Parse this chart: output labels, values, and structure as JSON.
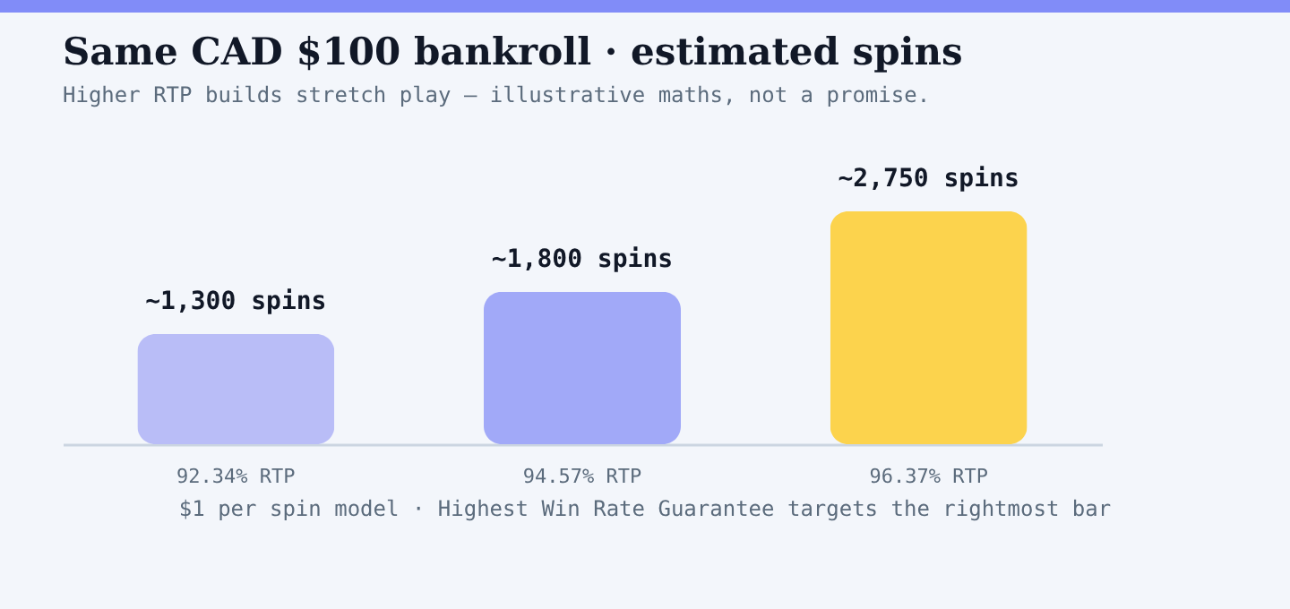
{
  "chart_data": {
    "type": "bar",
    "title": "Same CAD $100 bankroll · estimated spins",
    "subtitle": "Higher RTP builds stretch play — illustrative maths, not a promise.",
    "categories": [
      "92.34% RTP",
      "94.57% RTP",
      "96.37% RTP"
    ],
    "values": [
      1300,
      1800,
      2750
    ],
    "colors": [
      "#b9bdf7",
      "#a1a9f8",
      "#fcd34d"
    ],
    "value_labels": [
      "~1,300 spins",
      "~1,800 spins",
      "~2,750 spins"
    ],
    "annotations": [
      "$1 per spin model · Highest Win Rate Guarantee targets the rightmost bar"
    ],
    "grid": false
  }
}
